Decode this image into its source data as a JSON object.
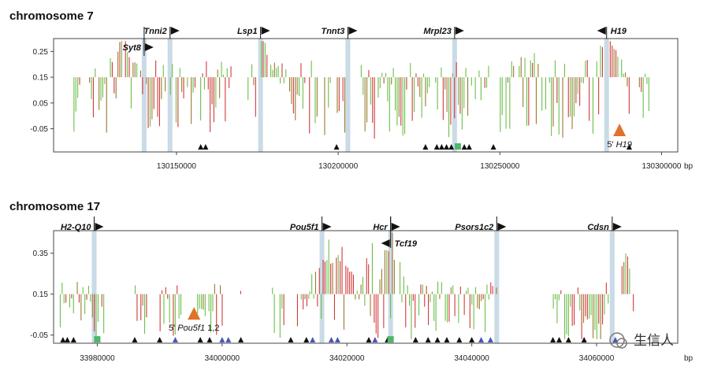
{
  "watermark": "生信人",
  "colors": {
    "green": "#6cbf4a",
    "red": "#d23a3a",
    "brown": "#9a7a2f",
    "highlight": "#c9dbe6",
    "triangle": "#111111",
    "triangle_blue": "#4a56b8",
    "orange": "#e0712b",
    "green_box": "#4fb76a",
    "frame": "#444444"
  },
  "chart_data": [
    {
      "type": "bar",
      "title": "chromosome 7",
      "unit_label": "bp",
      "xlim": [
        130112000,
        130305000
      ],
      "ylim": [
        -0.14,
        0.3
      ],
      "y_ticks": [
        {
          "v": 0.25,
          "label": "0.25"
        },
        {
          "v": 0.15,
          "label": "0.15"
        },
        {
          "v": 0.05,
          "label": "0.05"
        },
        {
          "v": -0.05,
          "label": "-0.05"
        }
      ],
      "x_ticks": [
        {
          "v": 130150000,
          "label": "130150000"
        },
        {
          "v": 130200000,
          "label": "130200000"
        },
        {
          "v": 130250000,
          "label": "130250000"
        },
        {
          "v": 130300000,
          "label": "130300000"
        }
      ],
      "genes": [
        {
          "name": "Tnni2",
          "pos": 130148000,
          "dir": "right",
          "row": 0
        },
        {
          "name": "Syt8",
          "pos": 130140000,
          "dir": "right",
          "row": 1
        },
        {
          "name": "Lsp1",
          "pos": 130176000,
          "dir": "right",
          "row": 0
        },
        {
          "name": "Tnnt3",
          "pos": 130203000,
          "dir": "right",
          "row": 0
        },
        {
          "name": "Mrpl23",
          "pos": 130236000,
          "dir": "right",
          "row": 0
        },
        {
          "name": "H19",
          "pos": 130283000,
          "dir": "left",
          "row": 0
        }
      ],
      "highlights": [
        130140000,
        130148000,
        130176000,
        130203000,
        130236000,
        130283000
      ],
      "segments": [
        [
          130117000,
          130120000,
          0.4
        ],
        [
          130123000,
          130147000,
          0.55
        ],
        [
          130148000,
          130167000,
          0.5
        ],
        [
          130172000,
          130190000,
          0.6
        ],
        [
          130191000,
          130198000,
          0.35
        ],
        [
          130199000,
          130202000,
          0.5
        ],
        [
          130207000,
          130229000,
          0.55
        ],
        [
          130230000,
          130247000,
          0.6
        ],
        [
          130250000,
          130282000,
          0.65
        ],
        [
          130284000,
          130291000,
          0.55
        ],
        [
          130293000,
          130296000,
          0.35
        ]
      ],
      "peaks": [
        {
          "pos": 130134000,
          "h": 0.24
        },
        {
          "pos": 130176000,
          "h": 0.26
        },
        {
          "pos": 130258000,
          "h": 0.2
        },
        {
          "pos": 130283000,
          "h": 0.25
        }
      ],
      "triangles": [
        130157500,
        130159000,
        130199500,
        130227000,
        130230500,
        130232000,
        130233500,
        130235000,
        130239000,
        130240500,
        130248000,
        130290000
      ],
      "triangles_blue": [],
      "green_boxes": [
        130237000
      ],
      "orange_marker": {
        "pos": 130287000,
        "label_prefix": "5'",
        "label_gene": "H19",
        "label_suffix": ""
      }
    },
    {
      "type": "bar",
      "title": "chromosome 17",
      "unit_label": "bp",
      "xlim": [
        33973000,
        34073000
      ],
      "ylim": [
        -0.09,
        0.46
      ],
      "y_ticks": [
        {
          "v": 0.35,
          "label": "0.35"
        },
        {
          "v": 0.15,
          "label": "0.15"
        },
        {
          "v": -0.05,
          "label": "-0.05"
        }
      ],
      "x_ticks": [
        {
          "v": 33980000,
          "label": "33980000"
        },
        {
          "v": 34000000,
          "label": "34000000"
        },
        {
          "v": 34020000,
          "label": "34020000"
        },
        {
          "v": 34040000,
          "label": "34040000"
        },
        {
          "v": 34060000,
          "label": "34060000"
        }
      ],
      "genes": [
        {
          "name": "H2-Q10",
          "pos": 33979500,
          "dir": "right",
          "row": 0
        },
        {
          "name": "Pou5f1",
          "pos": 34016000,
          "dir": "right",
          "row": 0
        },
        {
          "name": "Hcr",
          "pos": 34027000,
          "dir": "right",
          "row": 0
        },
        {
          "name": "Tcf19",
          "pos": 34027000,
          "dir": "left",
          "row": 1
        },
        {
          "name": "Psors1c2",
          "pos": 34044000,
          "dir": "right",
          "row": 0
        },
        {
          "name": "Cdsn",
          "pos": 34062500,
          "dir": "right",
          "row": 0
        }
      ],
      "highlights": [
        33979500,
        34016000,
        34027000,
        34044000,
        34062500
      ],
      "segments": [
        [
          33974000,
          33981000,
          0.5
        ],
        [
          33986000,
          33988000,
          0.4
        ],
        [
          33990000,
          33994000,
          0.4
        ],
        [
          33996000,
          34000000,
          0.55
        ],
        [
          34002000,
          34003000,
          0.3
        ],
        [
          34008000,
          34010000,
          0.3
        ],
        [
          34012000,
          34014000,
          0.5
        ],
        [
          34014000,
          34026000,
          0.75
        ],
        [
          34026000,
          34044000,
          0.65
        ],
        [
          34053000,
          34062000,
          0.65
        ],
        [
          34064000,
          34066000,
          0.5
        ]
      ],
      "peaks": [
        {
          "pos": 34016500,
          "h": 0.36
        },
        {
          "pos": 34019000,
          "h": 0.3
        },
        {
          "pos": 34024000,
          "h": 0.32
        },
        {
          "pos": 34027000,
          "h": 0.34
        },
        {
          "pos": 34065000,
          "h": 0.28
        }
      ],
      "triangles": [
        33974500,
        33975200,
        33976200,
        33986000,
        33990000,
        33996500,
        33998000,
        34003000,
        34011000,
        34013500,
        34023500,
        34026500,
        34031000,
        34033000,
        34034500,
        34036000,
        34038000,
        34040000,
        34053000,
        34054000,
        34055500,
        34058000
      ],
      "triangles_blue": [
        33992500,
        34000000,
        34001000,
        34014500,
        34017500,
        34018500,
        34024500,
        34041500,
        34043000,
        34063000
      ],
      "green_boxes": [
        33980000,
        34027000
      ],
      "orange_marker": {
        "pos": 33995500,
        "label_prefix": "5'",
        "label_gene": "Pou5f1",
        "label_suffix": "1,2"
      }
    }
  ]
}
